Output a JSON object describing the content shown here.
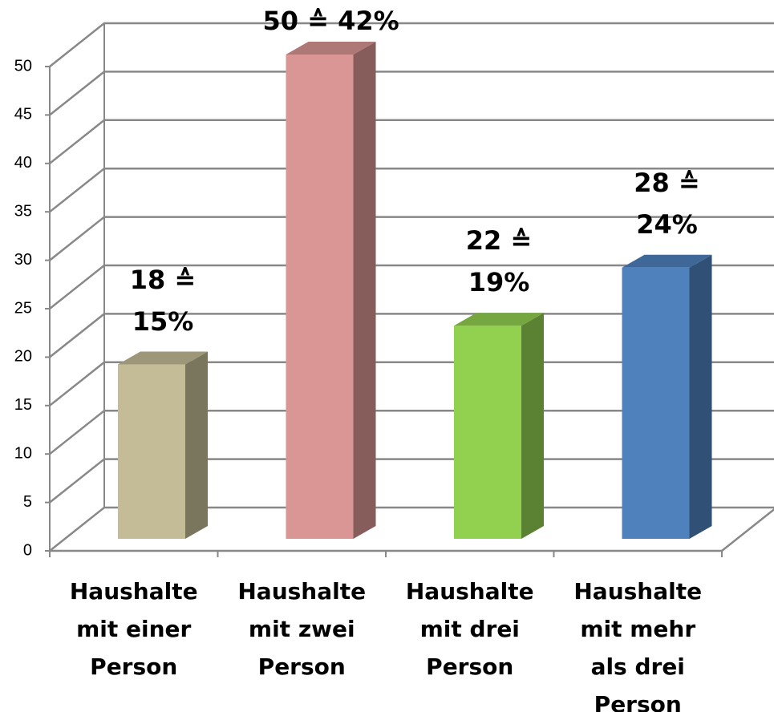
{
  "chart_data": {
    "type": "bar3d",
    "categories": [
      "Haushalte mit einer Person",
      "Haushalte mit zwei Person",
      "Haushalte mit drei Person",
      "Haushalte mit mehr als drei Person"
    ],
    "values": [
      18,
      50,
      22,
      28
    ],
    "value_labels": [
      "18 ≙ 15%",
      "50 ≙ 42%",
      "22 ≙ 19%",
      "28 ≙ 24%"
    ],
    "colors": [
      "#c4bc96",
      "#d99694",
      "#92d050",
      "#4f81bd"
    ],
    "ylim": [
      0,
      50
    ],
    "yticks": [
      0,
      5,
      10,
      15,
      20,
      25,
      30,
      35,
      40,
      45,
      50
    ],
    "grid": true
  }
}
